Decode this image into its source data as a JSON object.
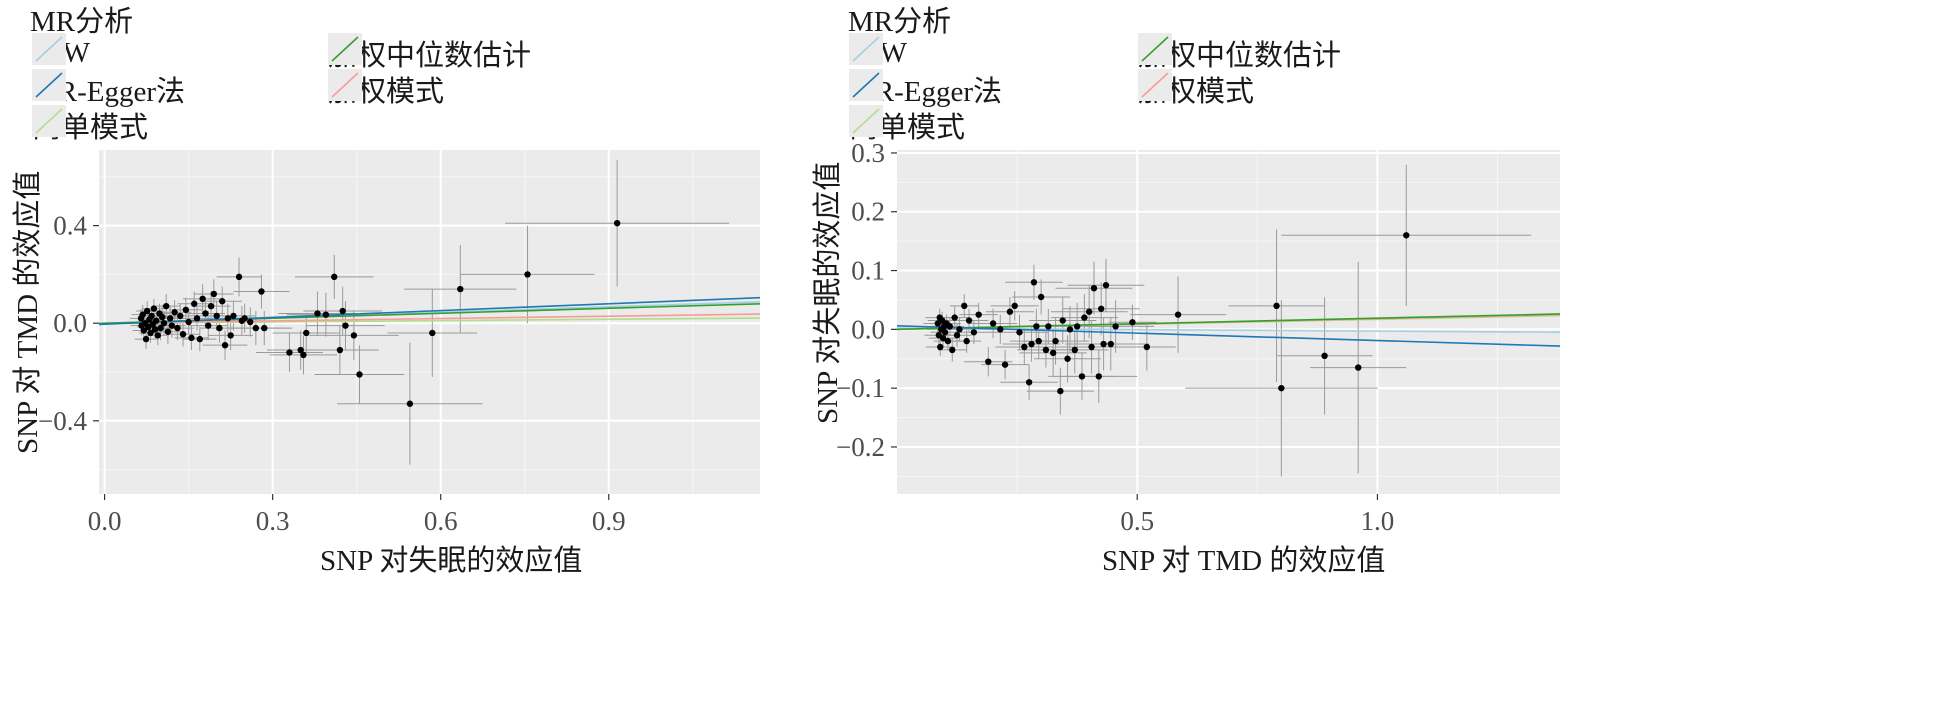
{
  "chart_data": [
    {
      "type": "scatter",
      "legend_title": "MR分析",
      "legend_position": "top-left",
      "grid": true,
      "xlabel": "SNP 对失眠的效应值",
      "ylabel": "SNP 对 TMD 的效应值",
      "xlim": [
        -0.01,
        1.17
      ],
      "ylim": [
        -0.7,
        0.71
      ],
      "x_ticks": [
        0.0,
        0.3,
        0.6,
        0.9
      ],
      "x_tick_labels": [
        "0.0",
        "0.3",
        "0.6",
        "0.9"
      ],
      "y_ticks": [
        -0.4,
        0.0,
        0.4
      ],
      "y_tick_labels": [
        "−0.4",
        "0.0",
        "0.4"
      ],
      "series": [
        {
          "name": "IVW",
          "color": "#a6cee3",
          "line": {
            "intercept": 0,
            "slope": 0.075
          }
        },
        {
          "name": "加权中位数估计",
          "color": "#33a02c",
          "line": {
            "intercept": 0,
            "slope": 0.068
          }
        },
        {
          "name": "MR-Egger法",
          "color": "#1f78b4",
          "line": {
            "intercept": -0.004,
            "slope": 0.093
          }
        },
        {
          "name": "加权模式",
          "color": "#fb9a99",
          "line": {
            "intercept": 0,
            "slope": 0.032
          }
        },
        {
          "name": "简单模式",
          "color": "#b2df8a",
          "line": {
            "intercept": 0,
            "slope": 0.018
          }
        }
      ],
      "points": [
        {
          "x": 0.065,
          "y": 0.02,
          "xe": 0.02,
          "ye": 0.04
        },
        {
          "x": 0.066,
          "y": -0.01,
          "xe": 0.02,
          "ye": 0.04
        },
        {
          "x": 0.068,
          "y": 0.035,
          "xe": 0.02,
          "ye": 0.04
        },
        {
          "x": 0.07,
          "y": -0.03,
          "xe": 0.02,
          "ye": 0.04
        },
        {
          "x": 0.072,
          "y": 0.0,
          "xe": 0.02,
          "ye": 0.04
        },
        {
          "x": 0.074,
          "y": -0.065,
          "xe": 0.02,
          "ye": 0.04
        },
        {
          "x": 0.076,
          "y": 0.05,
          "xe": 0.02,
          "ye": 0.04
        },
        {
          "x": 0.078,
          "y": -0.015,
          "xe": 0.02,
          "ye": 0.04
        },
        {
          "x": 0.08,
          "y": 0.015,
          "xe": 0.02,
          "ye": 0.04
        },
        {
          "x": 0.082,
          "y": -0.04,
          "xe": 0.02,
          "ye": 0.04
        },
        {
          "x": 0.084,
          "y": 0.03,
          "xe": 0.02,
          "ye": 0.04
        },
        {
          "x": 0.086,
          "y": -0.005,
          "xe": 0.02,
          "ye": 0.04
        },
        {
          "x": 0.088,
          "y": 0.06,
          "xe": 0.02,
          "ye": 0.04
        },
        {
          "x": 0.09,
          "y": -0.025,
          "xe": 0.02,
          "ye": 0.04
        },
        {
          "x": 0.092,
          "y": 0.01,
          "xe": 0.02,
          "ye": 0.04
        },
        {
          "x": 0.095,
          "y": -0.05,
          "xe": 0.02,
          "ye": 0.04
        },
        {
          "x": 0.098,
          "y": 0.04,
          "xe": 0.02,
          "ye": 0.04
        },
        {
          "x": 0.1,
          "y": -0.02,
          "xe": 0.025,
          "ye": 0.05
        },
        {
          "x": 0.103,
          "y": 0.025,
          "xe": 0.025,
          "ye": 0.05
        },
        {
          "x": 0.106,
          "y": 0.0,
          "xe": 0.025,
          "ye": 0.05
        },
        {
          "x": 0.11,
          "y": 0.07,
          "xe": 0.025,
          "ye": 0.05
        },
        {
          "x": 0.113,
          "y": -0.035,
          "xe": 0.025,
          "ye": 0.05
        },
        {
          "x": 0.117,
          "y": 0.02,
          "xe": 0.025,
          "ye": 0.05
        },
        {
          "x": 0.12,
          "y": -0.01,
          "xe": 0.025,
          "ye": 0.05
        },
        {
          "x": 0.125,
          "y": 0.045,
          "xe": 0.03,
          "ye": 0.05
        },
        {
          "x": 0.13,
          "y": -0.02,
          "xe": 0.03,
          "ye": 0.05
        },
        {
          "x": 0.135,
          "y": 0.03,
          "xe": 0.03,
          "ye": 0.05
        },
        {
          "x": 0.14,
          "y": -0.045,
          "xe": 0.03,
          "ye": 0.05
        },
        {
          "x": 0.145,
          "y": 0.055,
          "xe": 0.03,
          "ye": 0.05
        },
        {
          "x": 0.15,
          "y": 0.005,
          "xe": 0.03,
          "ye": 0.05
        },
        {
          "x": 0.155,
          "y": -0.06,
          "xe": 0.03,
          "ye": 0.05
        },
        {
          "x": 0.16,
          "y": 0.08,
          "xe": 0.03,
          "ye": 0.05
        },
        {
          "x": 0.165,
          "y": 0.02,
          "xe": 0.03,
          "ye": 0.05
        },
        {
          "x": 0.17,
          "y": -0.065,
          "xe": 0.03,
          "ye": 0.05
        },
        {
          "x": 0.175,
          "y": 0.1,
          "xe": 0.035,
          "ye": 0.06
        },
        {
          "x": 0.18,
          "y": 0.04,
          "xe": 0.035,
          "ye": 0.06
        },
        {
          "x": 0.185,
          "y": -0.01,
          "xe": 0.035,
          "ye": 0.06
        },
        {
          "x": 0.19,
          "y": 0.07,
          "xe": 0.035,
          "ye": 0.06
        },
        {
          "x": 0.195,
          "y": 0.12,
          "xe": 0.035,
          "ye": 0.06
        },
        {
          "x": 0.2,
          "y": 0.03,
          "xe": 0.035,
          "ye": 0.06
        },
        {
          "x": 0.205,
          "y": -0.02,
          "xe": 0.035,
          "ye": 0.06
        },
        {
          "x": 0.21,
          "y": 0.09,
          "xe": 0.035,
          "ye": 0.06
        },
        {
          "x": 0.215,
          "y": -0.09,
          "xe": 0.04,
          "ye": 0.06
        },
        {
          "x": 0.22,
          "y": 0.02,
          "xe": 0.04,
          "ye": 0.06
        },
        {
          "x": 0.225,
          "y": -0.05,
          "xe": 0.04,
          "ye": 0.06
        },
        {
          "x": 0.23,
          "y": 0.03,
          "xe": 0.04,
          "ye": 0.06
        },
        {
          "x": 0.24,
          "y": 0.19,
          "xe": 0.04,
          "ye": 0.08
        },
        {
          "x": 0.245,
          "y": 0.01,
          "xe": 0.04,
          "ye": 0.06
        },
        {
          "x": 0.25,
          "y": 0.02,
          "xe": 0.04,
          "ye": 0.06
        },
        {
          "x": 0.26,
          "y": 0.005,
          "xe": 0.05,
          "ye": 0.06
        },
        {
          "x": 0.27,
          "y": -0.02,
          "xe": 0.05,
          "ye": 0.07
        },
        {
          "x": 0.28,
          "y": 0.13,
          "xe": 0.05,
          "ye": 0.07
        },
        {
          "x": 0.285,
          "y": -0.02,
          "xe": 0.05,
          "ye": 0.07
        },
        {
          "x": 0.33,
          "y": -0.12,
          "xe": 0.06,
          "ye": 0.08
        },
        {
          "x": 0.35,
          "y": -0.11,
          "xe": 0.06,
          "ye": 0.08
        },
        {
          "x": 0.355,
          "y": -0.13,
          "xe": 0.06,
          "ye": 0.08
        },
        {
          "x": 0.36,
          "y": -0.04,
          "xe": 0.06,
          "ye": 0.08
        },
        {
          "x": 0.38,
          "y": 0.04,
          "xe": 0.07,
          "ye": 0.09
        },
        {
          "x": 0.395,
          "y": 0.035,
          "xe": 0.07,
          "ye": 0.09
        },
        {
          "x": 0.41,
          "y": 0.19,
          "xe": 0.07,
          "ye": 0.09
        },
        {
          "x": 0.42,
          "y": -0.11,
          "xe": 0.07,
          "ye": 0.1
        },
        {
          "x": 0.425,
          "y": 0.05,
          "xe": 0.07,
          "ye": 0.1
        },
        {
          "x": 0.43,
          "y": -0.01,
          "xe": 0.07,
          "ye": 0.1
        },
        {
          "x": 0.445,
          "y": -0.05,
          "xe": 0.08,
          "ye": 0.1
        },
        {
          "x": 0.455,
          "y": -0.21,
          "xe": 0.08,
          "ye": 0.12
        },
        {
          "x": 0.545,
          "y": -0.33,
          "xe": 0.13,
          "ye": 0.25
        },
        {
          "x": 0.585,
          "y": -0.04,
          "xe": 0.08,
          "ye": 0.18
        },
        {
          "x": 0.635,
          "y": 0.14,
          "xe": 0.1,
          "ye": 0.18
        },
        {
          "x": 0.755,
          "y": 0.2,
          "xe": 0.12,
          "ye": 0.2
        },
        {
          "x": 0.915,
          "y": 0.41,
          "xe": 0.2,
          "ye": 0.26
        }
      ]
    },
    {
      "type": "scatter",
      "legend_title": "MR分析",
      "legend_position": "top-left",
      "grid": true,
      "xlabel": "SNP 对 TMD 的效应值",
      "ylabel": "SNP 对失眠的效应值",
      "xlim": [
        0.0,
        1.38
      ],
      "ylim": [
        -0.28,
        0.305
      ],
      "x_ticks": [
        0.5,
        1.0
      ],
      "x_tick_labels": [
        "0.5",
        "1.0"
      ],
      "y_ticks": [
        -0.2,
        -0.1,
        0.0,
        0.1,
        0.2,
        0.3
      ],
      "y_tick_labels": [
        "−0.2",
        "−0.1",
        "0.0",
        "0.1",
        "0.2",
        "0.3"
      ],
      "series": [
        {
          "name": "IVW",
          "color": "#a6cee3",
          "line": {
            "intercept": 0.002,
            "slope": -0.005
          }
        },
        {
          "name": "加权中位数估计",
          "color": "#33a02c",
          "line": {
            "intercept": 0,
            "slope": 0.019
          }
        },
        {
          "name": "MR-Egger法",
          "color": "#1f78b4",
          "line": {
            "intercept": 0.006,
            "slope": -0.025
          }
        },
        {
          "name": "加权模式",
          "color": "#fb9a99",
          "line": {
            "intercept": 0,
            "slope": 0.018
          }
        },
        {
          "name": "简单模式",
          "color": "#b2df8a",
          "line": {
            "intercept": 0,
            "slope": 0.017
          }
        }
      ],
      "points": [
        {
          "x": 0.085,
          "y": 0.01,
          "xe": 0.03,
          "ye": 0.015
        },
        {
          "x": 0.087,
          "y": -0.01,
          "xe": 0.03,
          "ye": 0.015
        },
        {
          "x": 0.089,
          "y": 0.02,
          "xe": 0.03,
          "ye": 0.015
        },
        {
          "x": 0.09,
          "y": -0.03,
          "xe": 0.03,
          "ye": 0.015
        },
        {
          "x": 0.092,
          "y": 0.0,
          "xe": 0.03,
          "ye": 0.015
        },
        {
          "x": 0.094,
          "y": 0.015,
          "xe": 0.03,
          "ye": 0.015
        },
        {
          "x": 0.096,
          "y": -0.015,
          "xe": 0.03,
          "ye": 0.015
        },
        {
          "x": 0.098,
          "y": 0.005,
          "xe": 0.03,
          "ye": 0.015
        },
        {
          "x": 0.1,
          "y": -0.005,
          "xe": 0.03,
          "ye": 0.015
        },
        {
          "x": 0.103,
          "y": 0.01,
          "xe": 0.03,
          "ye": 0.015
        },
        {
          "x": 0.106,
          "y": -0.02,
          "xe": 0.03,
          "ye": 0.015
        },
        {
          "x": 0.11,
          "y": 0.005,
          "xe": 0.03,
          "ye": 0.015
        },
        {
          "x": 0.115,
          "y": -0.035,
          "xe": 0.03,
          "ye": 0.02
        },
        {
          "x": 0.12,
          "y": 0.02,
          "xe": 0.03,
          "ye": 0.02
        },
        {
          "x": 0.125,
          "y": -0.01,
          "xe": 0.03,
          "ye": 0.02
        },
        {
          "x": 0.13,
          "y": 0.0,
          "xe": 0.03,
          "ye": 0.02
        },
        {
          "x": 0.14,
          "y": 0.04,
          "xe": 0.03,
          "ye": 0.02
        },
        {
          "x": 0.145,
          "y": -0.02,
          "xe": 0.03,
          "ye": 0.02
        },
        {
          "x": 0.15,
          "y": 0.015,
          "xe": 0.04,
          "ye": 0.02
        },
        {
          "x": 0.16,
          "y": -0.005,
          "xe": 0.04,
          "ye": 0.02
        },
        {
          "x": 0.17,
          "y": 0.025,
          "xe": 0.04,
          "ye": 0.02
        },
        {
          "x": 0.19,
          "y": -0.055,
          "xe": 0.05,
          "ye": 0.025
        },
        {
          "x": 0.2,
          "y": 0.01,
          "xe": 0.05,
          "ye": 0.025
        },
        {
          "x": 0.215,
          "y": 0.0,
          "xe": 0.05,
          "ye": 0.025
        },
        {
          "x": 0.225,
          "y": -0.06,
          "xe": 0.05,
          "ye": 0.025
        },
        {
          "x": 0.235,
          "y": 0.03,
          "xe": 0.05,
          "ye": 0.025
        },
        {
          "x": 0.245,
          "y": 0.04,
          "xe": 0.05,
          "ye": 0.025
        },
        {
          "x": 0.255,
          "y": -0.005,
          "xe": 0.06,
          "ye": 0.03
        },
        {
          "x": 0.265,
          "y": -0.03,
          "xe": 0.06,
          "ye": 0.03
        },
        {
          "x": 0.275,
          "y": -0.09,
          "xe": 0.06,
          "ye": 0.03
        },
        {
          "x": 0.28,
          "y": -0.025,
          "xe": 0.06,
          "ye": 0.03
        },
        {
          "x": 0.285,
          "y": 0.08,
          "xe": 0.06,
          "ye": 0.03
        },
        {
          "x": 0.29,
          "y": 0.005,
          "xe": 0.06,
          "ye": 0.03
        },
        {
          "x": 0.295,
          "y": -0.02,
          "xe": 0.06,
          "ye": 0.03
        },
        {
          "x": 0.3,
          "y": 0.055,
          "xe": 0.06,
          "ye": 0.03
        },
        {
          "x": 0.31,
          "y": -0.035,
          "xe": 0.06,
          "ye": 0.03
        },
        {
          "x": 0.315,
          "y": 0.005,
          "xe": 0.06,
          "ye": 0.03
        },
        {
          "x": 0.325,
          "y": -0.04,
          "xe": 0.07,
          "ye": 0.04
        },
        {
          "x": 0.33,
          "y": -0.02,
          "xe": 0.07,
          "ye": 0.04
        },
        {
          "x": 0.34,
          "y": -0.105,
          "xe": 0.07,
          "ye": 0.04
        },
        {
          "x": 0.345,
          "y": 0.015,
          "xe": 0.07,
          "ye": 0.04
        },
        {
          "x": 0.355,
          "y": -0.05,
          "xe": 0.07,
          "ye": 0.04
        },
        {
          "x": 0.36,
          "y": 0.0,
          "xe": 0.07,
          "ye": 0.04
        },
        {
          "x": 0.37,
          "y": -0.035,
          "xe": 0.07,
          "ye": 0.04
        },
        {
          "x": 0.375,
          "y": 0.005,
          "xe": 0.07,
          "ye": 0.04
        },
        {
          "x": 0.385,
          "y": -0.08,
          "xe": 0.07,
          "ye": 0.04
        },
        {
          "x": 0.39,
          "y": 0.02,
          "xe": 0.07,
          "ye": 0.04
        },
        {
          "x": 0.4,
          "y": 0.03,
          "xe": 0.08,
          "ye": 0.045
        },
        {
          "x": 0.405,
          "y": -0.03,
          "xe": 0.08,
          "ye": 0.045
        },
        {
          "x": 0.41,
          "y": 0.07,
          "xe": 0.08,
          "ye": 0.045
        },
        {
          "x": 0.42,
          "y": -0.08,
          "xe": 0.08,
          "ye": 0.045
        },
        {
          "x": 0.425,
          "y": 0.035,
          "xe": 0.08,
          "ye": 0.045
        },
        {
          "x": 0.43,
          "y": -0.025,
          "xe": 0.08,
          "ye": 0.045
        },
        {
          "x": 0.435,
          "y": 0.075,
          "xe": 0.08,
          "ye": 0.045
        },
        {
          "x": 0.445,
          "y": -0.025,
          "xe": 0.08,
          "ye": 0.045
        },
        {
          "x": 0.455,
          "y": 0.005,
          "xe": 0.08,
          "ye": 0.045
        },
        {
          "x": 0.49,
          "y": 0.012,
          "xe": 0.05,
          "ye": 0.03
        },
        {
          "x": 0.52,
          "y": -0.03,
          "xe": 0.06,
          "ye": 0.04
        },
        {
          "x": 0.585,
          "y": 0.025,
          "xe": 0.1,
          "ye": 0.065
        },
        {
          "x": 0.79,
          "y": 0.04,
          "xe": 0.1,
          "ye": 0.13
        },
        {
          "x": 0.8,
          "y": -0.1,
          "xe": 0.2,
          "ye": 0.15
        },
        {
          "x": 0.89,
          "y": -0.045,
          "xe": 0.1,
          "ye": 0.1
        },
        {
          "x": 0.96,
          "y": -0.065,
          "xe": 0.1,
          "ye": 0.18
        },
        {
          "x": 1.06,
          "y": 0.16,
          "xe": 0.26,
          "ye": 0.12
        }
      ]
    }
  ]
}
